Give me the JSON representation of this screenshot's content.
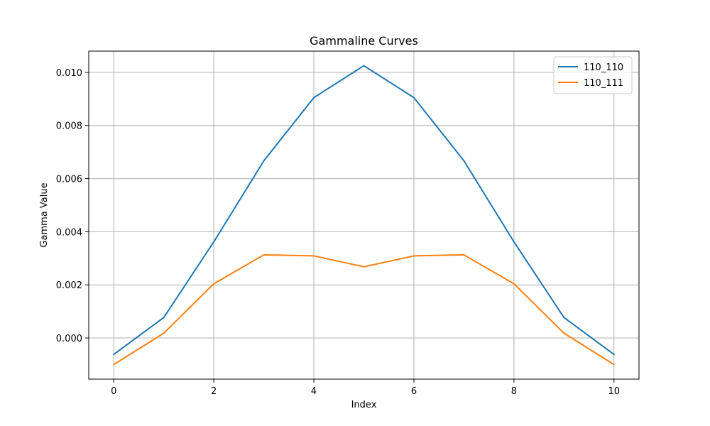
{
  "chart_data": {
    "type": "line",
    "title": "Gammaline Curves",
    "xlabel": "Index",
    "ylabel": "Gamma Value",
    "xlim": [
      -0.5,
      10.5
    ],
    "ylim": [
      -0.00155,
      0.0108
    ],
    "x_ticks": [
      0,
      2,
      4,
      6,
      8,
      10
    ],
    "x_tick_labels": [
      "0",
      "2",
      "4",
      "6",
      "8",
      "10"
    ],
    "y_ticks": [
      0.0,
      0.002,
      0.004,
      0.006,
      0.008,
      0.01
    ],
    "y_tick_labels": [
      "0.000",
      "0.002",
      "0.004",
      "0.006",
      "0.008",
      "0.010"
    ],
    "grid": true,
    "legend_position": "top-right",
    "x": [
      0,
      1,
      2,
      3,
      4,
      5,
      6,
      7,
      8,
      9,
      10
    ],
    "series": [
      {
        "name": "110_110",
        "color": "#1f77b4",
        "values": [
          -0.00062,
          0.00077,
          0.00362,
          0.00667,
          0.00905,
          0.01025,
          0.00905,
          0.00667,
          0.00362,
          0.00077,
          -0.00062
        ]
      },
      {
        "name": "110_111",
        "color": "#ff7f0e",
        "values": [
          -0.001,
          0.00018,
          0.00204,
          0.00313,
          0.00309,
          0.00268,
          0.00309,
          0.00313,
          0.00204,
          0.00018,
          -0.001
        ]
      }
    ]
  }
}
